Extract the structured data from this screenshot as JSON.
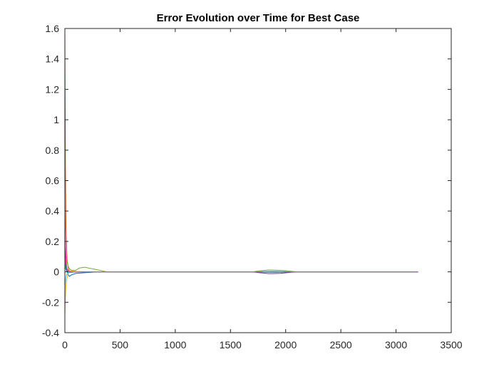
{
  "chart_data": {
    "type": "line",
    "title": "Error Evolution over Time for Best Case",
    "xlabel": "",
    "ylabel": "",
    "xlim": [
      0,
      3500
    ],
    "ylim": [
      -0.4,
      1.6
    ],
    "xticks": [
      0,
      500,
      1000,
      1500,
      2000,
      2500,
      3000,
      3500
    ],
    "yticks": [
      -0.4,
      -0.2,
      0,
      0.2,
      0.4,
      0.6,
      0.8,
      1,
      1.2,
      1.4,
      1.6
    ],
    "xtick_labels": [
      "0",
      "500",
      "1000",
      "1500",
      "2000",
      "2500",
      "3000",
      "3500"
    ],
    "ytick_labels": [
      "-0.4",
      "-0.2",
      "0",
      "0.2",
      "0.4",
      "0.6",
      "0.8",
      "1",
      "1.2",
      "1.4",
      "1.6"
    ],
    "grid": false,
    "box": true,
    "series": [
      {
        "color": "#0072BD",
        "x": [
          0,
          3,
          8,
          15,
          25,
          40,
          60,
          100,
          200,
          300,
          400,
          1700,
          1800,
          1900,
          2000,
          2100,
          3200
        ],
        "y": [
          0.17,
          0.12,
          0.07,
          0.03,
          -0.01,
          -0.03,
          -0.02,
          -0.01,
          -0.005,
          0,
          0,
          0,
          -0.002,
          -0.003,
          -0.002,
          0,
          0
        ]
      },
      {
        "color": "#D95319",
        "x": [
          0,
          2,
          5,
          10,
          20,
          35,
          60,
          100,
          200,
          300,
          400,
          1700,
          1800,
          1900,
          2000,
          2100,
          3200
        ],
        "y": [
          1.58,
          1.2,
          0.7,
          0.3,
          0.08,
          0.01,
          0,
          0,
          0,
          0,
          0,
          0,
          0,
          0,
          0,
          0,
          0
        ]
      },
      {
        "color": "#EDB120",
        "x": [
          0,
          3,
          8,
          15,
          25,
          40,
          60,
          100,
          200,
          300,
          400,
          1700,
          1800,
          1900,
          2000,
          2100,
          3200
        ],
        "y": [
          -0.28,
          -0.2,
          -0.12,
          -0.06,
          -0.02,
          0,
          0.005,
          0.002,
          0,
          0,
          0,
          0,
          0.003,
          0.004,
          0.002,
          0,
          0
        ]
      },
      {
        "color": "#7E2F8E",
        "x": [
          0,
          3,
          8,
          15,
          25,
          40,
          60,
          100,
          200,
          300,
          400,
          1700,
          1750,
          1850,
          1950,
          2050,
          2100,
          3200
        ],
        "y": [
          0.08,
          0.05,
          0.02,
          0.005,
          0,
          -0.005,
          -0.003,
          0,
          0,
          0,
          0,
          0,
          -0.005,
          -0.012,
          -0.01,
          -0.003,
          0,
          0
        ]
      },
      {
        "color": "#77AC30",
        "x": [
          0,
          3,
          8,
          15,
          25,
          40,
          60,
          100,
          130,
          180,
          250,
          320,
          380,
          1700,
          1750,
          1850,
          1950,
          2050,
          2100,
          3200
        ],
        "y": [
          0.3,
          0.22,
          0.14,
          0.08,
          0.05,
          0.02,
          0.01,
          0.01,
          0.025,
          0.03,
          0.02,
          0.01,
          0,
          0,
          0.006,
          0.012,
          0.01,
          0.004,
          0,
          0
        ]
      },
      {
        "color": "#4DBEEE",
        "x": [
          0,
          3,
          8,
          15,
          25,
          40,
          60,
          100,
          200,
          300,
          400,
          1700,
          1800,
          1900,
          2000,
          2100,
          3200
        ],
        "y": [
          -0.12,
          -0.08,
          -0.04,
          -0.02,
          -0.008,
          -0.003,
          -0.002,
          0,
          0,
          0,
          0,
          0,
          0.002,
          0.003,
          0.002,
          0,
          0
        ]
      },
      {
        "color": "#A2142F",
        "x": [
          0,
          3,
          8,
          15,
          25,
          40,
          60,
          100,
          200,
          300,
          400,
          3200
        ],
        "y": [
          0.25,
          0.15,
          0.07,
          0.02,
          0.005,
          0,
          0,
          0,
          0,
          0,
          0,
          0
        ]
      },
      {
        "color": "#FF33CC",
        "x": [
          0,
          2,
          5,
          10,
          20,
          35,
          60,
          100,
          400,
          3200
        ],
        "y": [
          0.5,
          0.35,
          0.2,
          0.08,
          0.02,
          0.003,
          0,
          0,
          0,
          0
        ]
      },
      {
        "color": "#00B8B8",
        "x": [
          0,
          3,
          8,
          15,
          25,
          40,
          60,
          100,
          200,
          300,
          400,
          3200
        ],
        "y": [
          0.1,
          0.06,
          0.03,
          0.01,
          0.003,
          0,
          0,
          0,
          0,
          0,
          0,
          0
        ]
      }
    ]
  }
}
